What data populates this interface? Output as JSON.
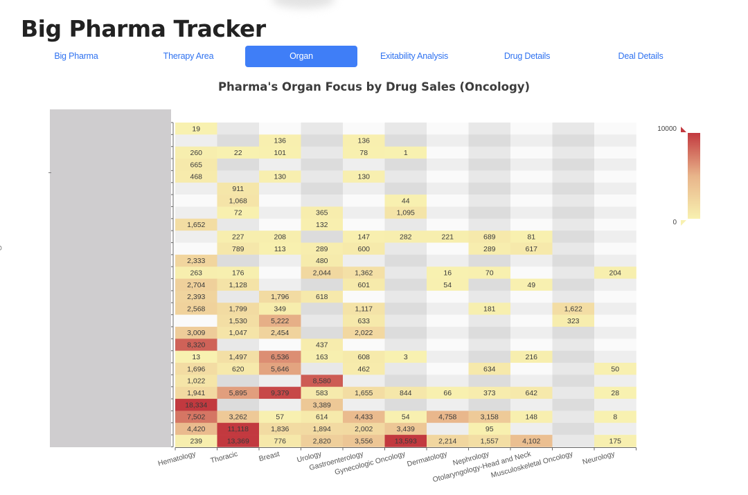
{
  "app_title": "Big Pharma Tracker",
  "tabs": [
    {
      "label": "Big Pharma",
      "active": false
    },
    {
      "label": "Therapy Area",
      "active": false
    },
    {
      "label": "Organ",
      "active": true
    },
    {
      "label": "Exitability Analysis",
      "active": false
    },
    {
      "label": "Drug Details",
      "active": false
    },
    {
      "label": "Deal Details",
      "active": false
    }
  ],
  "colors": {
    "accent": "#3f7ef7",
    "low": "#f8f1b0",
    "mid": "#e8b48a",
    "high": "#c2393f"
  },
  "chart_data": {
    "type": "heatmap",
    "title": "Pharma's Organ Focus by Drug Sales (Oncology)",
    "x_categories": [
      "Hematology",
      "Thoracic",
      "Breast",
      "Urology",
      "Gastroenterology",
      "Gynecologic Oncology",
      "Dermatology",
      "Nephrology",
      "Otolaryngology-Head and Neck",
      "Musculoskeletal Oncology",
      "Neurology"
    ],
    "value_range": [
      0,
      10000
    ],
    "legend": {
      "max_label": "10000",
      "min_label": "0",
      "position": "right"
    },
    "rows": [
      [
        19,
        null,
        null,
        null,
        null,
        null,
        null,
        null,
        null,
        null,
        null
      ],
      [
        null,
        null,
        136,
        null,
        136,
        null,
        null,
        null,
        null,
        null,
        null
      ],
      [
        260,
        22,
        101,
        null,
        78,
        1,
        null,
        null,
        null,
        null,
        null
      ],
      [
        665,
        null,
        null,
        null,
        null,
        null,
        null,
        null,
        null,
        null,
        null
      ],
      [
        468,
        null,
        130,
        null,
        130,
        null,
        null,
        null,
        null,
        null,
        null
      ],
      [
        null,
        911,
        null,
        null,
        null,
        null,
        null,
        null,
        null,
        null,
        null
      ],
      [
        null,
        1068,
        null,
        null,
        null,
        44,
        null,
        null,
        null,
        null,
        null
      ],
      [
        null,
        72,
        null,
        365,
        null,
        1095,
        null,
        null,
        null,
        null,
        null
      ],
      [
        1652,
        null,
        null,
        132,
        null,
        null,
        null,
        null,
        null,
        null,
        null
      ],
      [
        null,
        227,
        208,
        null,
        147,
        282,
        221,
        689,
        81,
        null,
        null
      ],
      [
        null,
        789,
        113,
        289,
        600,
        null,
        null,
        289,
        617,
        null,
        null
      ],
      [
        2333,
        null,
        null,
        480,
        null,
        null,
        null,
        null,
        null,
        null,
        null
      ],
      [
        263,
        176,
        null,
        2044,
        1362,
        null,
        16,
        70,
        null,
        null,
        204
      ],
      [
        2704,
        1128,
        null,
        null,
        601,
        null,
        54,
        null,
        49,
        null,
        null
      ],
      [
        2393,
        null,
        1796,
        618,
        null,
        null,
        null,
        null,
        null,
        null,
        null
      ],
      [
        2568,
        1799,
        349,
        null,
        1117,
        null,
        null,
        181,
        null,
        1622,
        null
      ],
      [
        null,
        1530,
        5222,
        null,
        633,
        null,
        null,
        null,
        null,
        323,
        null
      ],
      [
        3009,
        1047,
        2454,
        null,
        2022,
        null,
        null,
        null,
        null,
        null,
        null
      ],
      [
        8320,
        null,
        null,
        437,
        null,
        null,
        null,
        null,
        null,
        null,
        null
      ],
      [
        13,
        1497,
        6536,
        163,
        608,
        3,
        null,
        null,
        216,
        null,
        null
      ],
      [
        1696,
        620,
        5646,
        null,
        462,
        null,
        null,
        634,
        null,
        null,
        50
      ],
      [
        1022,
        null,
        null,
        8580,
        null,
        null,
        null,
        null,
        null,
        null,
        null
      ],
      [
        1941,
        5895,
        9379,
        583,
        1655,
        844,
        66,
        373,
        642,
        null,
        28
      ],
      [
        18334,
        null,
        null,
        3389,
        null,
        null,
        null,
        null,
        null,
        null,
        null
      ],
      [
        7502,
        3262,
        57,
        614,
        4433,
        54,
        4758,
        3158,
        148,
        null,
        8
      ],
      [
        4420,
        11118,
        1836,
        1894,
        2002,
        3439,
        null,
        95,
        null,
        null,
        null
      ],
      [
        239,
        13369,
        776,
        2820,
        3556,
        13593,
        2214,
        1557,
        4102,
        null,
        175
      ]
    ]
  }
}
